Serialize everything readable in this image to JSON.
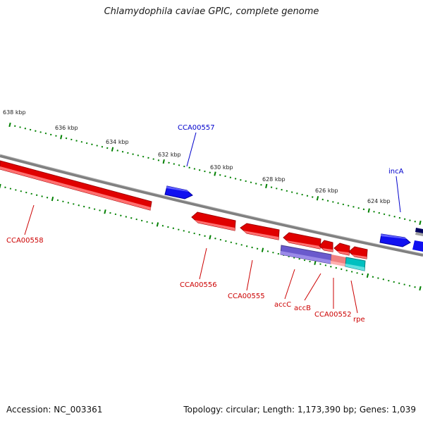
{
  "title": "Chlamydophila caviae GPIC, complete genome",
  "footer": {
    "accession": "Accession: NC_003361",
    "summary": "Topology: circular; Length: 1,173,390 bp; Genes: 1,039"
  },
  "colors": {
    "forward_gene": "#0000ee",
    "reverse_gene": "#ee0000",
    "acc_purple": "#6a5acd",
    "pink": "#f08080",
    "cyan": "#00c0c0",
    "backbone": "#808080",
    "tick": "#008000"
  },
  "scale_labels": [
    "638 kbp",
    "636 kbp",
    "634 kbp",
    "632 kbp",
    "630 kbp",
    "628 kbp",
    "626 kbp",
    "624 kbp"
  ],
  "genes": [
    {
      "name": "CCA00557",
      "strand": "forward"
    },
    {
      "name": "incA",
      "strand": "forward"
    },
    {
      "name": "CCA00558",
      "strand": "reverse"
    },
    {
      "name": "CCA00556",
      "strand": "reverse"
    },
    {
      "name": "CCA00555",
      "strand": "reverse"
    },
    {
      "name": "accC",
      "strand": "reverse"
    },
    {
      "name": "accB",
      "strand": "reverse"
    },
    {
      "name": "CCA00552",
      "strand": "reverse"
    },
    {
      "name": "rpe",
      "strand": "reverse"
    }
  ]
}
